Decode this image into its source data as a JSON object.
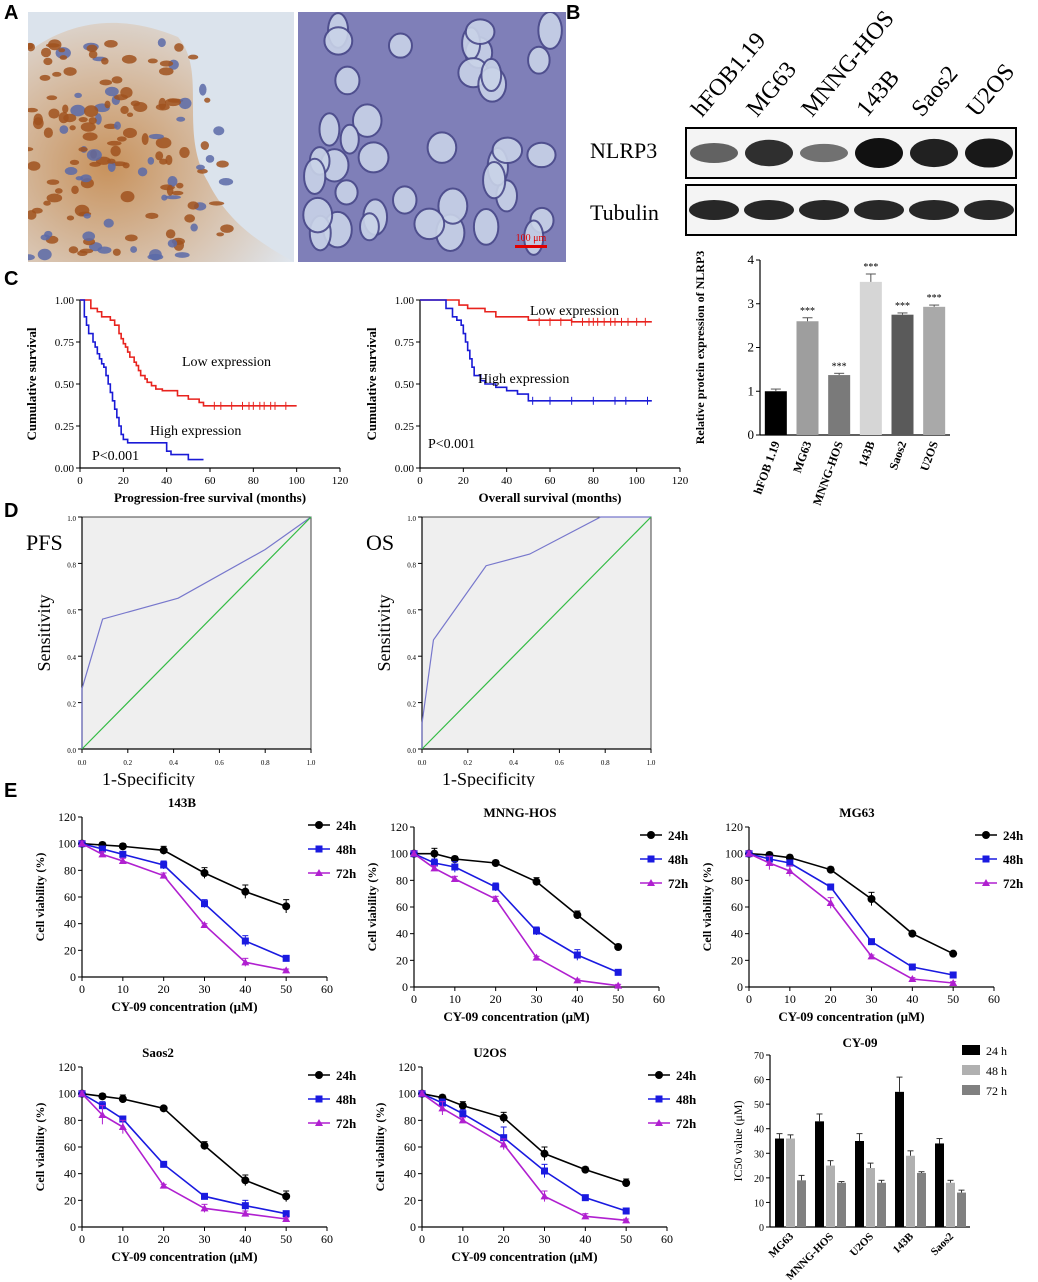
{
  "panel_labels": {
    "a": "A",
    "b": "B",
    "c": "C",
    "d": "D",
    "e": "E"
  },
  "panel_a": {
    "scale_bar": "100 μm"
  },
  "panel_b": {
    "lanes": [
      "hFOB1.19",
      "MG63",
      "MNNG-HOS",
      "143B",
      "Saos2",
      "U2OS"
    ],
    "blot_labels": [
      "NLRP3",
      "Tubulin"
    ],
    "nlrp3_band_intensity": [
      0.45,
      0.8,
      0.35,
      1.0,
      0.9,
      0.95
    ],
    "tubulin_band_intensity": [
      0.9,
      0.9,
      0.9,
      0.9,
      0.9,
      0.9
    ]
  },
  "chart_data": [
    {
      "id": "b_bar",
      "type": "bar",
      "ylabel": "Relative protein expression of NLRP3",
      "ylim": [
        0,
        4
      ],
      "yticks": [
        "0",
        "1",
        "2",
        "3",
        "4"
      ],
      "categories": [
        "hFOB 1.19",
        "MG63",
        "MNNG-HOS",
        "143B",
        "Saos2",
        "U2OS"
      ],
      "values": [
        1.0,
        2.6,
        1.37,
        3.5,
        2.75,
        2.93
      ],
      "errors": [
        0.05,
        0.08,
        0.04,
        0.18,
        0.04,
        0.04
      ],
      "annotations": [
        "",
        "***",
        "***",
        "***",
        "***",
        "***"
      ],
      "colors": [
        "#000000",
        "#9e9e9e",
        "#7a7a7a",
        "#d6d6d6",
        "#5a5a5a",
        "#a9a9a9"
      ]
    },
    {
      "id": "c_pfs",
      "type": "line",
      "xlabel": "Progression-free survival (months)",
      "ylabel": "Cumulative survival",
      "xlim": [
        0,
        120
      ],
      "ylim": [
        0,
        1
      ],
      "xticks": [
        "0",
        "20",
        "40",
        "60",
        "80",
        "100",
        "120"
      ],
      "yticks": [
        "0.00",
        "0.25",
        "0.50",
        "0.75",
        "1.00"
      ],
      "annotations": [
        "Low expression",
        "High expression",
        "P<0.001"
      ],
      "series": [
        {
          "name": "Low expression",
          "color": "#e8231e",
          "x": [
            0,
            5,
            8,
            10,
            12,
            14,
            16,
            18,
            19,
            20,
            21,
            22,
            23,
            25,
            26,
            27,
            28,
            30,
            31,
            33,
            35,
            38,
            40,
            42,
            45,
            50,
            55,
            57,
            60,
            100
          ],
          "y": [
            1,
            0.95,
            0.93,
            0.9,
            0.9,
            0.88,
            0.85,
            0.8,
            0.77,
            0.74,
            0.72,
            0.69,
            0.66,
            0.63,
            0.61,
            0.58,
            0.55,
            0.53,
            0.51,
            0.49,
            0.47,
            0.46,
            0.46,
            0.46,
            0.43,
            0.41,
            0.39,
            0.37,
            0.37,
            0.37
          ],
          "censor_x": [
            62,
            65,
            70,
            75,
            78,
            80,
            83,
            85,
            88,
            90,
            95
          ]
        },
        {
          "name": "High expression",
          "color": "#1a1ad6",
          "x": [
            0,
            2,
            3,
            4,
            6,
            7,
            8,
            9,
            10,
            11,
            12,
            13,
            14,
            15,
            16,
            17,
            18,
            19,
            20,
            22,
            25,
            30,
            40,
            42,
            50,
            57
          ],
          "y": [
            1,
            0.9,
            0.85,
            0.8,
            0.75,
            0.72,
            0.68,
            0.65,
            0.62,
            0.6,
            0.55,
            0.5,
            0.45,
            0.4,
            0.35,
            0.3,
            0.25,
            0.2,
            0.17,
            0.15,
            0.15,
            0.15,
            0.1,
            0.08,
            0.05,
            0.05
          ],
          "censor_x": []
        }
      ]
    },
    {
      "id": "c_os",
      "type": "line",
      "xlabel": "Overall survival (months)",
      "ylabel": "Cumulative survival",
      "xlim": [
        0,
        120
      ],
      "ylim": [
        0,
        1
      ],
      "xticks": [
        "0",
        "20",
        "40",
        "60",
        "80",
        "100",
        "120"
      ],
      "yticks": [
        "0.00",
        "0.25",
        "0.50",
        "0.75",
        "1.00"
      ],
      "annotations": [
        "Low expression",
        "High expression",
        "P<0.001"
      ],
      "series": [
        {
          "name": "Low expression",
          "color": "#e8231e",
          "x": [
            0,
            15,
            18,
            22,
            25,
            30,
            35,
            40,
            45,
            50,
            55,
            60,
            70,
            107
          ],
          "y": [
            1,
            1,
            0.97,
            0.95,
            0.95,
            0.93,
            0.9,
            0.9,
            0.9,
            0.88,
            0.88,
            0.88,
            0.87,
            0.87
          ],
          "censor_x": [
            55,
            60,
            65,
            70,
            75,
            78,
            80,
            82,
            85,
            88,
            90,
            93,
            96,
            100,
            104
          ]
        },
        {
          "name": "High expression",
          "color": "#1a1ad6",
          "x": [
            0,
            10,
            12,
            15,
            17,
            19,
            20,
            21,
            22,
            23,
            24,
            25,
            28,
            30,
            35,
            40,
            45,
            50,
            107
          ],
          "y": [
            1,
            1,
            0.95,
            0.9,
            0.88,
            0.85,
            0.8,
            0.75,
            0.7,
            0.65,
            0.6,
            0.55,
            0.52,
            0.5,
            0.48,
            0.46,
            0.44,
            0.4,
            0.4
          ],
          "censor_x": [
            52,
            60,
            70,
            80,
            90,
            95,
            105
          ]
        }
      ]
    },
    {
      "id": "d_pfs",
      "type": "line",
      "title": "PFS",
      "xlabel": "1-Specificity",
      "ylabel": "Sensitivity",
      "xlim": [
        0,
        1
      ],
      "ylim": [
        0,
        1
      ],
      "xticks": [
        "0.0",
        "0.2",
        "0.4",
        "0.6",
        "0.8",
        "1.0"
      ],
      "yticks": [
        "0.0",
        "0.2",
        "0.4",
        "0.6",
        "0.8",
        "1.0"
      ],
      "series": [
        {
          "name": "ROC",
          "color": "#7777cc",
          "x": [
            0,
            0,
            0.09,
            0.42,
            0.8,
            1
          ],
          "y": [
            0,
            0.26,
            0.56,
            0.65,
            0.86,
            1
          ]
        },
        {
          "name": "Reference",
          "color": "#33bb44",
          "x": [
            0,
            1
          ],
          "y": [
            0,
            1
          ]
        }
      ]
    },
    {
      "id": "d_os",
      "type": "line",
      "title": "OS",
      "xlabel": "1-Specificity",
      "ylabel": "Sensitivity",
      "xlim": [
        0,
        1
      ],
      "ylim": [
        0,
        1
      ],
      "xticks": [
        "0.0",
        "0.2",
        "0.4",
        "0.6",
        "0.8",
        "1.0"
      ],
      "yticks": [
        "0.0",
        "0.2",
        "0.4",
        "0.6",
        "0.8",
        "1.0"
      ],
      "series": [
        {
          "name": "ROC",
          "color": "#7777cc",
          "x": [
            0,
            0,
            0.05,
            0.28,
            0.47,
            0.78,
            1
          ],
          "y": [
            0,
            0.11,
            0.47,
            0.79,
            0.84,
            1,
            1
          ]
        },
        {
          "name": "Reference",
          "color": "#33bb44",
          "x": [
            0,
            1
          ],
          "y": [
            0,
            1
          ]
        }
      ]
    },
    {
      "id": "e_143b",
      "type": "line",
      "title": "143B",
      "xlabel": "CY-09 concentration (μM)",
      "ylabel": "Cell viability (%)",
      "xlim": [
        0,
        60
      ],
      "ylim": [
        0,
        120
      ],
      "xticks": [
        "0",
        "10",
        "20",
        "30",
        "40",
        "50",
        "60"
      ],
      "yticks": [
        "0",
        "20",
        "40",
        "60",
        "80",
        "100",
        "120"
      ],
      "x": [
        0,
        5,
        10,
        20,
        30,
        40,
        50
      ],
      "series": [
        {
          "name": "24h",
          "color": "#000000",
          "marker": "circle",
          "values": [
            100,
            99,
            98,
            95,
            78,
            64,
            53
          ],
          "errors": [
            2,
            2,
            2,
            3,
            4,
            5,
            5
          ]
        },
        {
          "name": "48h",
          "color": "#1a1ae0",
          "marker": "square",
          "values": [
            100,
            96,
            92,
            84,
            55,
            27,
            14
          ],
          "errors": [
            2,
            2,
            2,
            3,
            3,
            4,
            2
          ]
        },
        {
          "name": "72h",
          "color": "#b020d0",
          "marker": "triangle",
          "values": [
            100,
            92,
            87,
            76,
            39,
            11,
            5
          ],
          "errors": [
            2,
            2,
            2,
            2,
            1,
            3,
            1
          ]
        }
      ]
    },
    {
      "id": "e_mnng",
      "type": "line",
      "title": "MNNG-HOS",
      "xlabel": "CY-09 concentration (μM)",
      "ylabel": "Cell viability (%)",
      "xlim": [
        0,
        60
      ],
      "ylim": [
        0,
        120
      ],
      "xticks": [
        "0",
        "10",
        "20",
        "30",
        "40",
        "50",
        "60"
      ],
      "yticks": [
        "0",
        "20",
        "40",
        "60",
        "80",
        "100",
        "120"
      ],
      "x": [
        0,
        5,
        10,
        20,
        30,
        40,
        50
      ],
      "series": [
        {
          "name": "24h",
          "color": "#000000",
          "marker": "circle",
          "values": [
            100,
            100,
            96,
            93,
            79,
            54,
            30
          ],
          "errors": [
            2,
            4,
            2,
            2,
            3,
            3,
            2
          ]
        },
        {
          "name": "48h",
          "color": "#1a1ae0",
          "marker": "square",
          "values": [
            100,
            93,
            90,
            75,
            42,
            24,
            11
          ],
          "errors": [
            2,
            3,
            4,
            3,
            3,
            4,
            1
          ]
        },
        {
          "name": "72h",
          "color": "#b020d0",
          "marker": "triangle",
          "values": [
            100,
            89,
            81,
            66,
            22,
            5,
            1
          ],
          "errors": [
            2,
            2,
            2,
            2,
            1,
            1,
            1
          ]
        }
      ]
    },
    {
      "id": "e_mg63",
      "type": "line",
      "title": "MG63",
      "xlabel": "CY-09 concentration (μM)",
      "ylabel": "Cell viability (%)",
      "xlim": [
        0,
        60
      ],
      "ylim": [
        0,
        120
      ],
      "xticks": [
        "0",
        "10",
        "20",
        "30",
        "40",
        "50",
        "60"
      ],
      "yticks": [
        "0",
        "20",
        "40",
        "60",
        "80",
        "100",
        "120"
      ],
      "x": [
        0,
        5,
        10,
        20,
        30,
        40,
        50
      ],
      "series": [
        {
          "name": "24h",
          "color": "#000000",
          "marker": "circle",
          "values": [
            100,
            99,
            97,
            88,
            66,
            40,
            25
          ],
          "errors": [
            2,
            2,
            2,
            2,
            5,
            1,
            1
          ]
        },
        {
          "name": "48h",
          "color": "#1a1ae0",
          "marker": "square",
          "values": [
            100,
            96,
            93,
            75,
            34,
            15,
            9
          ],
          "errors": [
            2,
            2,
            2,
            1,
            1,
            1,
            1
          ]
        },
        {
          "name": "72h",
          "color": "#b020d0",
          "marker": "triangle",
          "values": [
            100,
            93,
            87,
            63,
            23,
            6,
            3
          ],
          "errors": [
            2,
            5,
            4,
            4,
            1,
            1,
            1
          ]
        }
      ]
    },
    {
      "id": "e_saos2",
      "type": "line",
      "title": "Saos2",
      "xlabel": "CY-09 concentration (μM)",
      "ylabel": "Cell viability (%)",
      "xlim": [
        0,
        60
      ],
      "ylim": [
        0,
        120
      ],
      "xticks": [
        "0",
        "10",
        "20",
        "30",
        "40",
        "50",
        "60"
      ],
      "yticks": [
        "0",
        "20",
        "40",
        "60",
        "80",
        "100",
        "120"
      ],
      "x": [
        0,
        5,
        10,
        20,
        30,
        40,
        50
      ],
      "series": [
        {
          "name": "24h",
          "color": "#000000",
          "marker": "circle",
          "values": [
            100,
            98,
            96,
            89,
            61,
            35,
            23
          ],
          "errors": [
            2,
            2,
            3,
            1,
            3,
            4,
            4
          ]
        },
        {
          "name": "48h",
          "color": "#1a1ae0",
          "marker": "square",
          "values": [
            100,
            91,
            81,
            47,
            23,
            16,
            10
          ],
          "errors": [
            2,
            3,
            2,
            2,
            1,
            4,
            2
          ]
        },
        {
          "name": "72h",
          "color": "#b020d0",
          "marker": "triangle",
          "values": [
            100,
            84,
            75,
            31,
            14,
            10,
            6
          ],
          "errors": [
            2,
            7,
            5,
            1,
            3,
            2,
            1
          ]
        }
      ]
    },
    {
      "id": "e_u2os",
      "type": "line",
      "title": "U2OS",
      "xlabel": "CY-09 concentration (μM)",
      "ylabel": "Cell viability (%)",
      "xlim": [
        0,
        60
      ],
      "ylim": [
        0,
        120
      ],
      "xticks": [
        "0",
        "10",
        "20",
        "30",
        "40",
        "50",
        "60"
      ],
      "yticks": [
        "0",
        "20",
        "40",
        "60",
        "80",
        "100",
        "120"
      ],
      "x": [
        0,
        5,
        10,
        20,
        30,
        40,
        50
      ],
      "series": [
        {
          "name": "24h",
          "color": "#000000",
          "marker": "circle",
          "values": [
            100,
            97,
            91,
            82,
            55,
            43,
            33
          ],
          "errors": [
            2,
            2,
            3,
            4,
            5,
            2,
            3
          ]
        },
        {
          "name": "48h",
          "color": "#1a1ae0",
          "marker": "square",
          "values": [
            100,
            93,
            85,
            67,
            42,
            22,
            12
          ],
          "errors": [
            2,
            3,
            3,
            8,
            5,
            1,
            1
          ]
        },
        {
          "name": "72h",
          "color": "#b020d0",
          "marker": "triangle",
          "values": [
            100,
            89,
            80,
            62,
            23,
            8,
            5
          ],
          "errors": [
            2,
            5,
            2,
            4,
            4,
            2,
            1
          ]
        }
      ]
    },
    {
      "id": "e_ic50",
      "type": "bar",
      "title": "CY-09",
      "ylabel": "IC50 value (μM)",
      "ylim": [
        0,
        70
      ],
      "yticks": [
        "0",
        "10",
        "20",
        "30",
        "40",
        "50",
        "60",
        "70"
      ],
      "categories": [
        "MG63",
        "MNNG-HOS",
        "U2OS",
        "143B",
        "Saos2"
      ],
      "series": [
        {
          "name": "24 h",
          "color": "#000000",
          "values": [
            36,
            43,
            35,
            55,
            34
          ],
          "errors": [
            2,
            3,
            3,
            6,
            2
          ]
        },
        {
          "name": "48 h",
          "color": "#b0b0b0",
          "values": [
            36,
            25,
            24,
            29,
            18
          ],
          "errors": [
            1.5,
            2,
            2,
            2,
            1
          ]
        },
        {
          "name": "72 h",
          "color": "#808080",
          "values": [
            19,
            18,
            18,
            22,
            14
          ],
          "errors": [
            2,
            0.5,
            1,
            0.5,
            1
          ]
        }
      ]
    }
  ]
}
